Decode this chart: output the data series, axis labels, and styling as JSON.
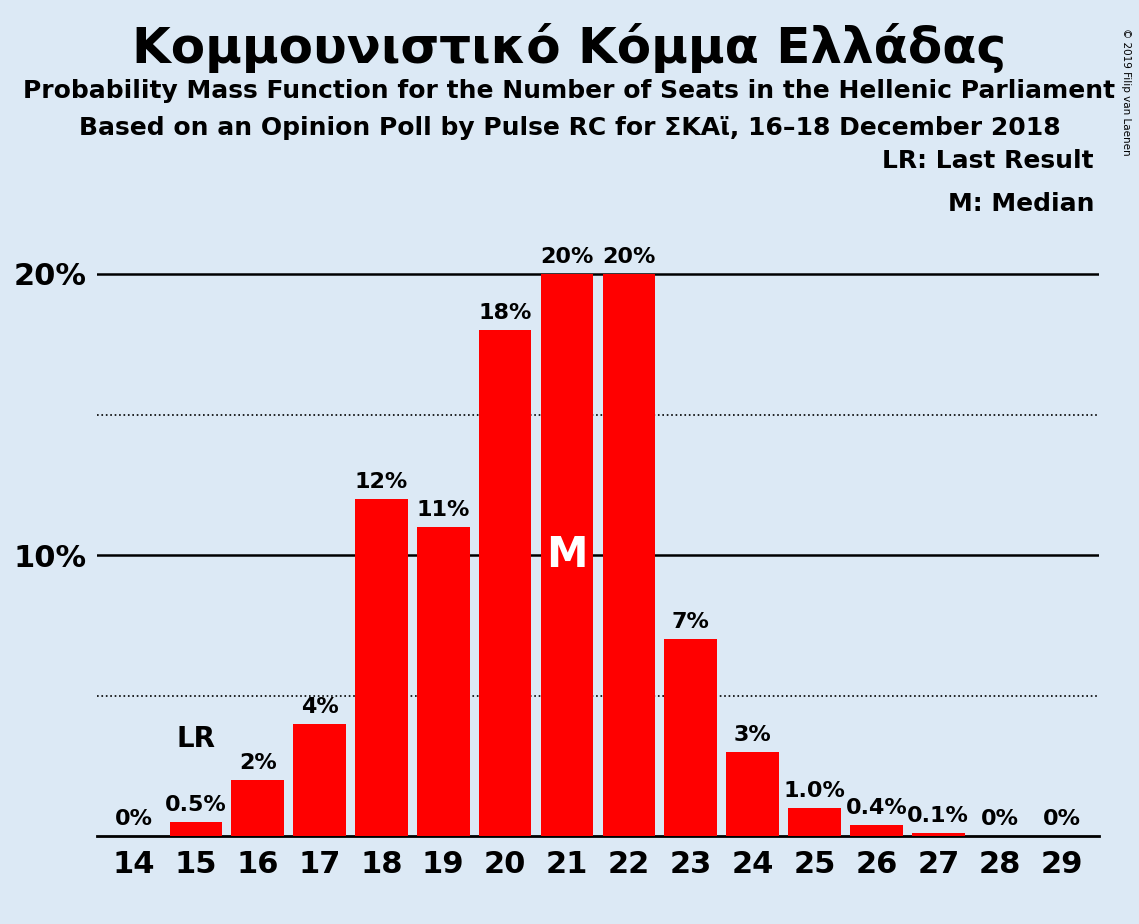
{
  "title": "Κομμουνιστικό Κόμμα Ελλάδας",
  "subtitle1": "Probability Mass Function for the Number of Seats in the Hellenic Parliament",
  "subtitle2": "Based on an Opinion Poll by Pulse RC for ΣΚΑϊ, 16–18 December 2018",
  "copyright": "© 2019 Filip van Laenen",
  "categories": [
    14,
    15,
    16,
    17,
    18,
    19,
    20,
    21,
    22,
    23,
    24,
    25,
    26,
    27,
    28,
    29
  ],
  "values": [
    0.0,
    0.5,
    2.0,
    4.0,
    12.0,
    11.0,
    18.0,
    20.0,
    20.0,
    7.0,
    3.0,
    1.0,
    0.4,
    0.1,
    0.0,
    0.0
  ],
  "bar_color": "#ff0000",
  "background_color": "#dce9f5",
  "bar_labels": [
    "0%",
    "0.5%",
    "2%",
    "4%",
    "12%",
    "11%",
    "18%",
    "20%",
    "20%",
    "7%",
    "3%",
    "1.0%",
    "0.4%",
    "0.1%",
    "0%",
    "0%"
  ],
  "yticks": [
    10,
    20
  ],
  "ytick_labels": [
    "10%",
    "20%"
  ],
  "dotted_lines": [
    5,
    15
  ],
  "lr_seat": 15,
  "median_seat": 21,
  "legend_lr": "LR: Last Result",
  "legend_m": "M: Median",
  "title_fontsize": 36,
  "subtitle_fontsize": 18,
  "bar_label_fontsize": 16,
  "tick_fontsize": 22,
  "legend_fontsize": 18
}
